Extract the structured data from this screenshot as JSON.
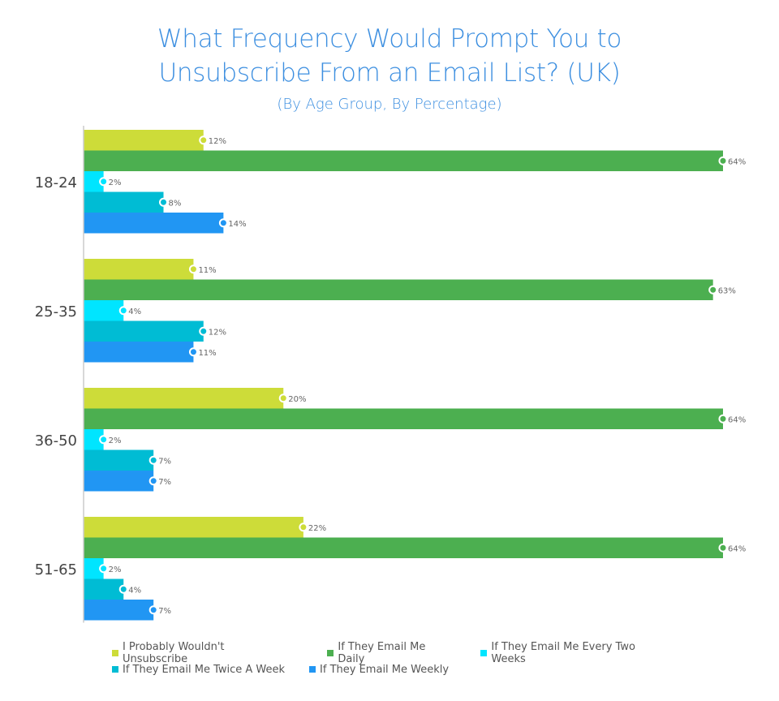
{
  "chart_data": {
    "type": "bar",
    "orientation": "horizontal",
    "title_line1": "What Frequency Would Prompt You to",
    "title_line2": "Unsubscribe From an Email List? (UK)",
    "subtitle": "(By Age Group, By Percentage)",
    "xlabel": "",
    "ylabel": "",
    "xlim": [
      0,
      64
    ],
    "grid": false,
    "legend_position": "bottom",
    "categories": [
      "18-24",
      "25-35",
      "36-50",
      "51-65"
    ],
    "series": [
      {
        "name": "I Probably Wouldn't Unsubscribe",
        "color": "#cddc39",
        "values": [
          12,
          11,
          20,
          22
        ],
        "labels": [
          "12%",
          "11%",
          "20%",
          "22%"
        ]
      },
      {
        "name": "If They Email Me Daily",
        "color": "#4caf50",
        "values": [
          64,
          63,
          64,
          64
        ],
        "labels": [
          "64%",
          "63%",
          "64%",
          "64%"
        ]
      },
      {
        "name": "If They Email Me Every Two Weeks",
        "color": "#00e5ff",
        "values": [
          2,
          4,
          2,
          2
        ],
        "labels": [
          "2%",
          "4%",
          "2%",
          "2%"
        ]
      },
      {
        "name": "If They Email Me Twice A Week",
        "color": "#00bcd4",
        "values": [
          8,
          12,
          7,
          4
        ],
        "labels": [
          "8%",
          "12%",
          "7%",
          "4%"
        ]
      },
      {
        "name": "If They Email Me Weekly",
        "color": "#2196f3",
        "values": [
          14,
          11,
          7,
          7
        ],
        "labels": [
          "14%",
          "11%",
          "7%",
          "7%"
        ]
      }
    ]
  }
}
